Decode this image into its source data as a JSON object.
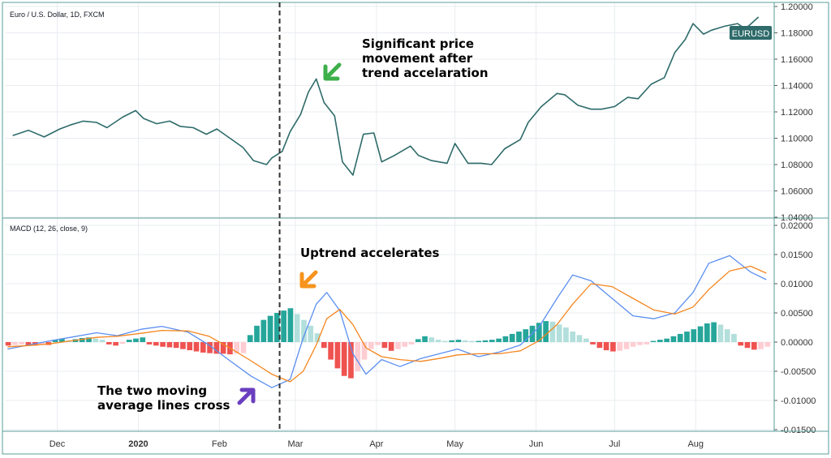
{
  "chart_data": [
    {
      "type": "line",
      "pane": "price",
      "title": "Euro / U.S. Dollar, 1D, FXCM",
      "symbol_badge": "EURUSD",
      "x": [
        "2019-11-14",
        "2019-11-20",
        "2019-11-26",
        "2019-12-02",
        "2019-12-06",
        "2019-12-11",
        "2019-12-16",
        "2019-12-20",
        "2019-12-26",
        "2019-12-31",
        "2020-01-03",
        "2020-01-08",
        "2020-01-13",
        "2020-01-17",
        "2020-01-22",
        "2020-01-27",
        "2020-01-31",
        "2020-02-05",
        "2020-02-10",
        "2020-02-14",
        "2020-02-19",
        "2020-02-21",
        "2020-02-25",
        "2020-02-28",
        "2020-03-03",
        "2020-03-06",
        "2020-03-09",
        "2020-03-12",
        "2020-03-16",
        "2020-03-19",
        "2020-03-23",
        "2020-03-27",
        "2020-03-31",
        "2020-04-03",
        "2020-04-08",
        "2020-04-14",
        "2020-04-17",
        "2020-04-22",
        "2020-04-28",
        "2020-05-01",
        "2020-05-06",
        "2020-05-11",
        "2020-05-15",
        "2020-05-20",
        "2020-05-26",
        "2020-05-29",
        "2020-06-03",
        "2020-06-09",
        "2020-06-12",
        "2020-06-17",
        "2020-06-22",
        "2020-06-26",
        "2020-07-01",
        "2020-07-06",
        "2020-07-10",
        "2020-07-15",
        "2020-07-20",
        "2020-07-24",
        "2020-07-28",
        "2020-07-31",
        "2020-08-04",
        "2020-08-07",
        "2020-08-12",
        "2020-08-17",
        "2020-08-20",
        "2020-08-25"
      ],
      "y": [
        1.102,
        1.106,
        1.101,
        1.107,
        1.11,
        1.113,
        1.112,
        1.108,
        1.116,
        1.121,
        1.115,
        1.111,
        1.113,
        1.109,
        1.108,
        1.103,
        1.107,
        1.1,
        1.093,
        1.083,
        1.08,
        1.085,
        1.09,
        1.105,
        1.118,
        1.135,
        1.145,
        1.127,
        1.117,
        1.082,
        1.072,
        1.103,
        1.104,
        1.082,
        1.087,
        1.094,
        1.087,
        1.083,
        1.081,
        1.096,
        1.081,
        1.081,
        1.08,
        1.092,
        1.099,
        1.112,
        1.124,
        1.134,
        1.133,
        1.125,
        1.122,
        1.122,
        1.124,
        1.131,
        1.13,
        1.141,
        1.146,
        1.165,
        1.175,
        1.187,
        1.179,
        1.182,
        1.185,
        1.187,
        1.183,
        1.192
      ],
      "ylim": [
        1.04,
        1.2
      ],
      "yticks": [
        "1.04000",
        "1.06000",
        "1.08000",
        "1.10000",
        "1.12000",
        "1.14000",
        "1.16000",
        "1.18000",
        "1.20000"
      ],
      "yticks_values": [
        1.04,
        1.06,
        1.08,
        1.1,
        1.12,
        1.14,
        1.16,
        1.18,
        1.2
      ],
      "color": "#2e6b6a"
    },
    {
      "type": "line",
      "pane": "macd",
      "title": "MACD (12, 26, close, 9)",
      "x": [
        "2019-11-12",
        "2019-11-20",
        "2019-11-28",
        "2019-12-06",
        "2019-12-16",
        "2019-12-24",
        "2020-01-02",
        "2020-01-10",
        "2020-01-20",
        "2020-01-28",
        "2020-02-05",
        "2020-02-13",
        "2020-02-21",
        "2020-02-28",
        "2020-03-04",
        "2020-03-09",
        "2020-03-13",
        "2020-03-18",
        "2020-03-23",
        "2020-03-28",
        "2020-04-03",
        "2020-04-10",
        "2020-04-18",
        "2020-04-25",
        "2020-05-02",
        "2020-05-10",
        "2020-05-18",
        "2020-05-26",
        "2020-06-02",
        "2020-06-09",
        "2020-06-15",
        "2020-06-22",
        "2020-06-30",
        "2020-07-08",
        "2020-07-16",
        "2020-07-24",
        "2020-07-31",
        "2020-08-06",
        "2020-08-14",
        "2020-08-22",
        "2020-08-28"
      ],
      "series": [
        {
          "values": [
            -0.0012,
            -0.0005,
            0.0002,
            0.0008,
            0.0016,
            0.0011,
            0.0022,
            0.0027,
            0.0017,
            -0.0005,
            -0.0032,
            -0.0058,
            -0.0078,
            -0.0064,
            0.0007,
            0.0065,
            0.0085,
            0.0054,
            -0.002,
            -0.0055,
            -0.003,
            -0.0042,
            -0.0028,
            -0.002,
            -0.0012,
            -0.0025,
            -0.0017,
            -0.0005,
            0.0025,
            0.0075,
            0.0115,
            0.0105,
            0.0075,
            0.0045,
            0.004,
            0.005,
            0.0085,
            0.0135,
            0.0148,
            0.012,
            0.0107
          ],
          "color": "#5b8ff0"
        },
        {
          "values": [
            -0.0008,
            -0.0006,
            -0.0003,
            0.0002,
            0.0008,
            0.001,
            0.0015,
            0.002,
            0.0019,
            0.001,
            -0.001,
            -0.0032,
            -0.0055,
            -0.0068,
            -0.005,
            -0.0005,
            0.004,
            0.0056,
            0.003,
            -0.001,
            -0.0025,
            -0.003,
            -0.0033,
            -0.0028,
            -0.0022,
            -0.002,
            -0.002,
            -0.0015,
            0.0002,
            0.003,
            0.0065,
            0.01,
            0.0095,
            0.0075,
            0.0055,
            0.0048,
            0.006,
            0.009,
            0.0122,
            0.013,
            0.0118
          ],
          "color": "#f5861f"
        }
      ],
      "histogram": [
        -0.0006,
        -0.0005,
        -0.0004,
        -0.0005,
        -0.0006,
        -0.0004,
        -0.0005,
        0.0004,
        0.0006,
        0.0003,
        0.0005,
        0.0007,
        0.0008,
        0.0006,
        0.0004,
        -0.0004,
        -0.0006,
        -0.0003,
        0.0004,
        0.0006,
        0.0008,
        -0.0004,
        -0.0006,
        -0.0008,
        -0.0009,
        -0.001,
        -0.0012,
        -0.0014,
        -0.0016,
        -0.0018,
        -0.0019,
        -0.002,
        -0.002,
        -0.0021,
        -0.002,
        -0.0019,
        0.0012,
        0.0028,
        0.0038,
        0.0045,
        0.005,
        0.0054,
        0.0058,
        0.0048,
        0.0038,
        0.0028,
        0.0015,
        -0.001,
        -0.003,
        -0.0045,
        -0.0058,
        -0.0062,
        -0.005,
        -0.003,
        -0.0012,
        -0.0005,
        -0.001,
        -0.0015,
        -0.0012,
        -0.0008,
        -0.0004,
        0.0005,
        0.001,
        0.0008,
        0.0004,
        0.0002,
        0.0003,
        0.0004,
        0.0003,
        0.0002,
        0.0002,
        0.0003,
        0.0004,
        0.0006,
        0.001,
        0.0014,
        0.0018,
        0.0022,
        0.0028,
        0.0033,
        0.0036,
        0.0035,
        0.003,
        0.0025,
        0.0018,
        0.0012,
        0.0006,
        -0.0004,
        -0.001,
        -0.0014,
        -0.0016,
        -0.0015,
        -0.0012,
        -0.0008,
        -0.0005,
        -0.0004,
        0.0002,
        0.0004,
        0.0006,
        0.001,
        0.0014,
        0.0018,
        0.0022,
        0.0027,
        0.0032,
        0.0034,
        0.003,
        0.0022,
        0.0014,
        -0.0006,
        -0.001,
        -0.0013,
        -0.0012,
        -0.0008
      ],
      "ylim": [
        -0.015,
        0.02
      ],
      "yticks": [
        "-0.01500",
        "-0.01000",
        "-0.00500",
        "0.00000",
        "0.00500",
        "0.01000",
        "0.01500",
        "0.02000"
      ],
      "yticks_values": [
        -0.015,
        -0.01,
        -0.005,
        0,
        0.005,
        0.01,
        0.015,
        0.02
      ]
    }
  ],
  "time_axis": {
    "labels": [
      {
        "text": "Dec",
        "date": "2019-12-01",
        "bold": false
      },
      {
        "text": "2020",
        "date": "2020-01-01",
        "bold": true
      },
      {
        "text": "Feb",
        "date": "2020-02-01",
        "bold": false
      },
      {
        "text": "Mar",
        "date": "2020-03-01",
        "bold": false
      },
      {
        "text": "Apr",
        "date": "2020-04-01",
        "bold": false
      },
      {
        "text": "May",
        "date": "2020-05-01",
        "bold": false
      },
      {
        "text": "Jun",
        "date": "2020-06-01",
        "bold": false
      },
      {
        "text": "Jul",
        "date": "2020-07-01",
        "bold": false
      },
      {
        "text": "Aug",
        "date": "2020-08-01",
        "bold": false
      }
    ],
    "crosshair_date": "2020-02-24"
  },
  "annotations": [
    {
      "lines": [
        "Significant price",
        "movement after",
        "trend accelaration"
      ],
      "color": "#3db04a"
    },
    {
      "lines": [
        "Uptrend accelerates"
      ],
      "color": "#f7941d"
    },
    {
      "lines": [
        "The two moving",
        "average lines cross"
      ],
      "color": "#6a3fbf"
    }
  ],
  "colors": {
    "grid": "#e9ecf0",
    "border": "#5a9e99",
    "hist_up_strong": "#26a69a",
    "hist_up_weak": "#b2dfdb",
    "hist_down_strong": "#ef5350",
    "hist_down_weak": "#ffcdd2"
  }
}
